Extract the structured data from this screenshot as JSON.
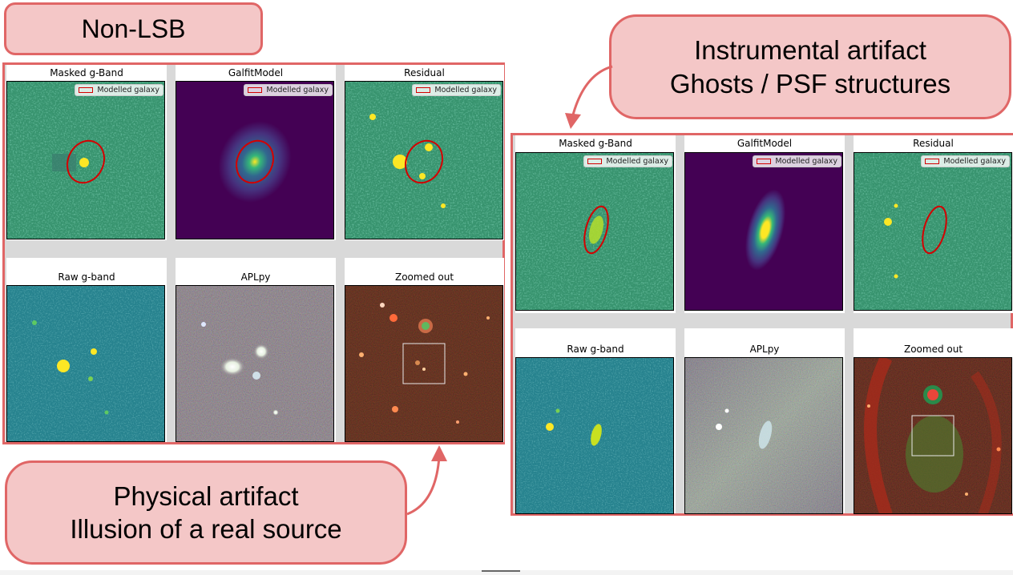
{
  "callouts": {
    "non_lsb": "Non-LSB",
    "instrumental_line1": "Instrumental artifact",
    "instrumental_line2": "Ghosts / PSF structures",
    "physical_line1": "Physical artifact",
    "physical_line2": "Illusion of a real source"
  },
  "left_panel": {
    "titles": [
      "Masked g-Band",
      "GalfitModel",
      "Residual",
      "Raw g-band",
      "APLpy",
      "Zoomed out"
    ],
    "legend_label": "Modelled galaxy"
  },
  "right_panel": {
    "titles": [
      "Masked g-Band",
      "GalfitModel",
      "Residual",
      "Raw g-band",
      "APLpy",
      "Zoomed out"
    ],
    "legend_label": "Modelled galaxy"
  },
  "colors": {
    "callout_fill": "#f4c7c7",
    "callout_border": "#e06666",
    "ellipse": "#d40000",
    "viridis_bg": "#3a8c6e",
    "model_bg": "#440154"
  }
}
